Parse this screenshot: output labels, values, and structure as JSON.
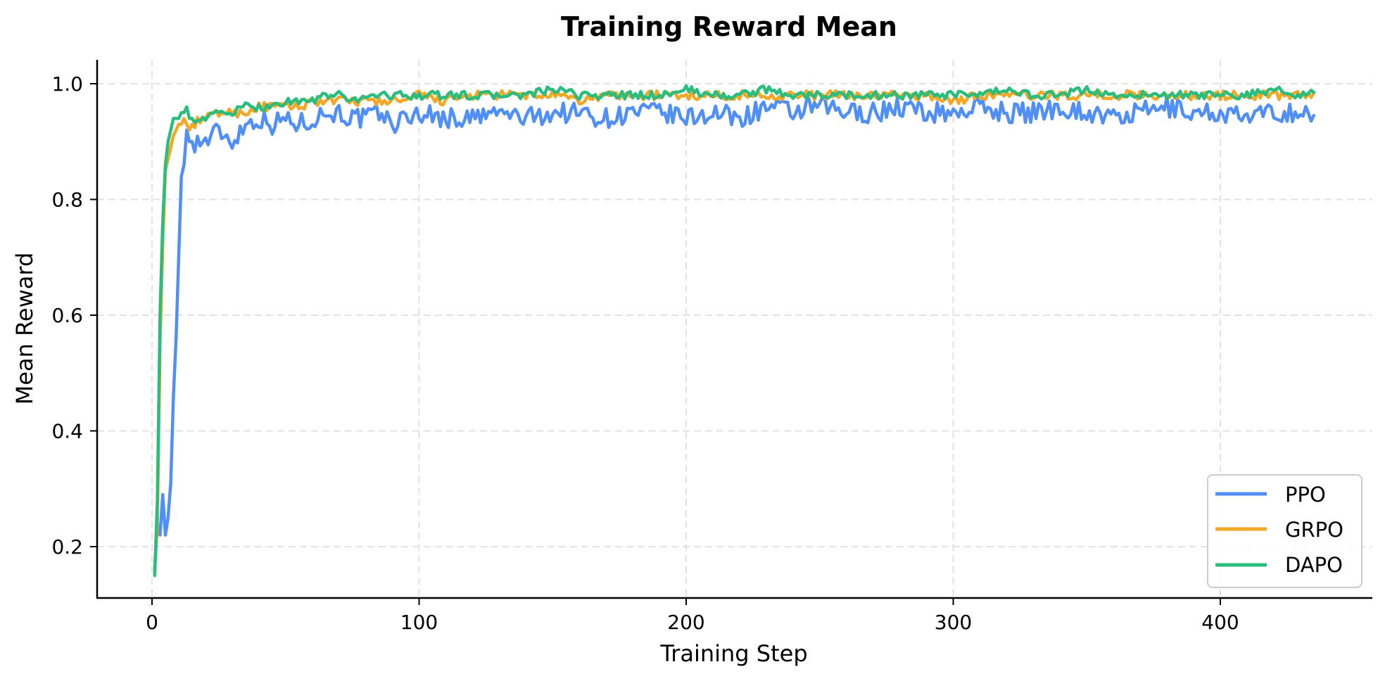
{
  "chart_data": {
    "type": "line",
    "title": "Training Reward Mean",
    "xlabel": "Training Step",
    "ylabel": "Mean Reward",
    "xlim": [
      -20,
      457
    ],
    "ylim": [
      0.11,
      1.04
    ],
    "xticks": [
      0,
      100,
      200,
      300,
      400
    ],
    "yticks": [
      0.2,
      0.4,
      0.6,
      0.8,
      1.0
    ],
    "ytick_labels": [
      "0.2",
      "0.4",
      "0.6",
      "0.8",
      "1.0"
    ],
    "grid": true,
    "legend_position": "lower right",
    "x": [
      1,
      2,
      3,
      4,
      5,
      6,
      7,
      8,
      9,
      10,
      11,
      12,
      13,
      14,
      15,
      20,
      25,
      30,
      35,
      40,
      45,
      50,
      55,
      60,
      65,
      70,
      75,
      80,
      85,
      90,
      95,
      100,
      110,
      120,
      130,
      140,
      150,
      160,
      170,
      180,
      190,
      200,
      210,
      220,
      230,
      240,
      250,
      260,
      270,
      280,
      290,
      300,
      310,
      320,
      330,
      340,
      350,
      360,
      370,
      380,
      390,
      400,
      410,
      420,
      430,
      435
    ],
    "series": [
      {
        "name": "PPO",
        "color": "#4f8ff7",
        "values": [
          0.16,
          0.24,
          0.22,
          0.29,
          0.22,
          0.25,
          0.31,
          0.46,
          0.56,
          0.7,
          0.84,
          0.86,
          0.92,
          0.9,
          0.9,
          0.9,
          0.92,
          0.9,
          0.93,
          0.94,
          0.93,
          0.94,
          0.93,
          0.94,
          0.95,
          0.95,
          0.94,
          0.94,
          0.95,
          0.93,
          0.94,
          0.95,
          0.94,
          0.94,
          0.95,
          0.94,
          0.95,
          0.95,
          0.94,
          0.95,
          0.95,
          0.94,
          0.95,
          0.94,
          0.96,
          0.95,
          0.96,
          0.95,
          0.95,
          0.96,
          0.95,
          0.95,
          0.96,
          0.95,
          0.95,
          0.96,
          0.95,
          0.94,
          0.95,
          0.96,
          0.95,
          0.95,
          0.94,
          0.95,
          0.95,
          0.945
        ]
      },
      {
        "name": "GRPO",
        "color": "#f5a623",
        "values": [
          0.16,
          0.24,
          0.55,
          0.72,
          0.85,
          0.87,
          0.89,
          0.91,
          0.92,
          0.93,
          0.93,
          0.94,
          0.93,
          0.92,
          0.93,
          0.94,
          0.95,
          0.95,
          0.95,
          0.96,
          0.96,
          0.96,
          0.96,
          0.97,
          0.97,
          0.97,
          0.97,
          0.97,
          0.97,
          0.97,
          0.97,
          0.98,
          0.97,
          0.98,
          0.98,
          0.98,
          0.98,
          0.97,
          0.98,
          0.98,
          0.98,
          0.98,
          0.98,
          0.98,
          0.98,
          0.98,
          0.98,
          0.98,
          0.98,
          0.98,
          0.98,
          0.97,
          0.98,
          0.98,
          0.98,
          0.98,
          0.98,
          0.98,
          0.98,
          0.98,
          0.98,
          0.98,
          0.98,
          0.98,
          0.98,
          0.985
        ]
      },
      {
        "name": "DAPO",
        "color": "#2bbd7e",
        "values": [
          0.15,
          0.28,
          0.6,
          0.76,
          0.86,
          0.9,
          0.92,
          0.94,
          0.94,
          0.94,
          0.95,
          0.95,
          0.96,
          0.94,
          0.94,
          0.94,
          0.95,
          0.95,
          0.96,
          0.96,
          0.96,
          0.97,
          0.97,
          0.97,
          0.98,
          0.98,
          0.97,
          0.98,
          0.98,
          0.98,
          0.98,
          0.98,
          0.98,
          0.98,
          0.98,
          0.98,
          0.99,
          0.98,
          0.98,
          0.98,
          0.98,
          0.99,
          0.98,
          0.98,
          0.99,
          0.98,
          0.98,
          0.98,
          0.98,
          0.98,
          0.98,
          0.98,
          0.98,
          0.99,
          0.98,
          0.98,
          0.99,
          0.98,
          0.98,
          0.98,
          0.98,
          0.98,
          0.98,
          0.99,
          0.98,
          0.985
        ]
      }
    ]
  },
  "legend": {
    "items": [
      {
        "label": "PPO",
        "color": "#4f8ff7"
      },
      {
        "label": "GRPO",
        "color": "#f5a623"
      },
      {
        "label": "DAPO",
        "color": "#2bbd7e"
      }
    ]
  }
}
